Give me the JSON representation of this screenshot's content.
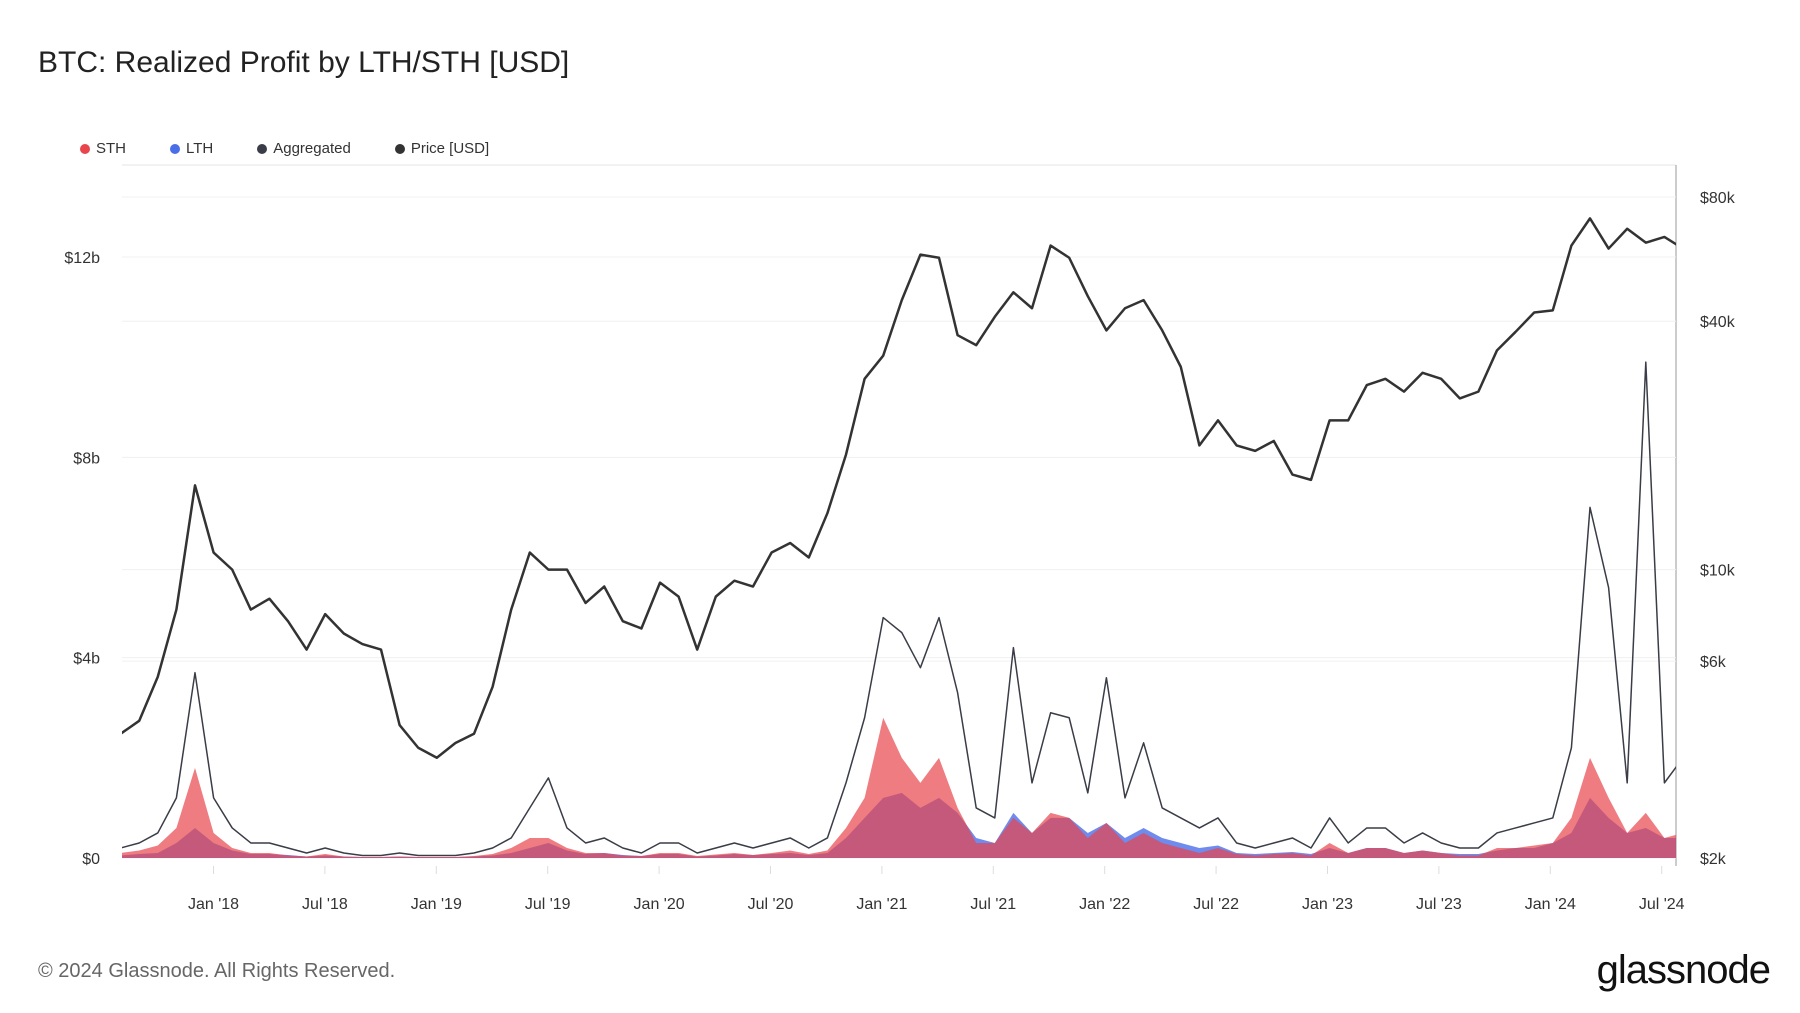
{
  "title": "BTC: Realized Profit by LTH/STH [USD]",
  "footer": "© 2024 Glassnode. All Rights Reserved.",
  "logo": "glassnode",
  "legend": [
    {
      "label": "STH",
      "color": "#e8454c"
    },
    {
      "label": "LTH",
      "color": "#4a6ee8"
    },
    {
      "label": "Aggregated",
      "color": "#3a3d47"
    },
    {
      "label": "Price [USD]",
      "color": "#333333"
    }
  ],
  "chart_data": {
    "type": "area",
    "title": "BTC: Realized Profit by LTH/STH [USD]",
    "x_ticks": [
      "Jan '18",
      "Jul '18",
      "Jan '19",
      "Jul '19",
      "Jan '20",
      "Jul '20",
      "Jan '21",
      "Jul '21",
      "Jan '22",
      "Jul '22",
      "Jan '23",
      "Jul '23",
      "Jan '24",
      "Jul '24"
    ],
    "y_left": {
      "ticks": [
        "$0",
        "$4b",
        "$8b",
        "$12b"
      ],
      "tick_values": [
        0,
        4,
        8,
        12
      ],
      "unit": "billion USD",
      "range": [
        0,
        12.3
      ]
    },
    "y_right": {
      "ticks": [
        "$2k",
        "$6k",
        "$10k",
        "$40k",
        "$80k"
      ],
      "tick_values": [
        2,
        6,
        10,
        40,
        80
      ],
      "unit": "thousand USD",
      "scale": "log",
      "range": [
        2,
        80
      ]
    },
    "grid": true,
    "legend_position": "top-left",
    "x": [
      "2017-08",
      "2017-09",
      "2017-10",
      "2017-11",
      "2017-12",
      "2018-01",
      "2018-02",
      "2018-03",
      "2018-04",
      "2018-05",
      "2018-06",
      "2018-07",
      "2018-08",
      "2018-09",
      "2018-10",
      "2018-11",
      "2018-12",
      "2019-01",
      "2019-02",
      "2019-03",
      "2019-04",
      "2019-05",
      "2019-06",
      "2019-07",
      "2019-08",
      "2019-09",
      "2019-10",
      "2019-11",
      "2019-12",
      "2020-01",
      "2020-02",
      "2020-03",
      "2020-04",
      "2020-05",
      "2020-06",
      "2020-07",
      "2020-08",
      "2020-09",
      "2020-10",
      "2020-11",
      "2020-12",
      "2021-01",
      "2021-02",
      "2021-03",
      "2021-04",
      "2021-05",
      "2021-06",
      "2021-07",
      "2021-08",
      "2021-09",
      "2021-10",
      "2021-11",
      "2021-12",
      "2022-01",
      "2022-02",
      "2022-03",
      "2022-04",
      "2022-05",
      "2022-06",
      "2022-07",
      "2022-08",
      "2022-09",
      "2022-10",
      "2022-11",
      "2022-12",
      "2023-01",
      "2023-02",
      "2023-03",
      "2023-04",
      "2023-05",
      "2023-06",
      "2023-07",
      "2023-08",
      "2023-09",
      "2023-10",
      "2023-11",
      "2023-12",
      "2024-01",
      "2024-02",
      "2024-03",
      "2024-04",
      "2024-05",
      "2024-06",
      "2024-07",
      "2024-08"
    ],
    "series": [
      {
        "name": "Aggregated",
        "axis": "left",
        "color": "#3a3d47",
        "values": [
          0.2,
          0.3,
          0.5,
          1.2,
          3.7,
          1.2,
          0.6,
          0.3,
          0.3,
          0.2,
          0.1,
          0.2,
          0.1,
          0.05,
          0.05,
          0.1,
          0.05,
          0.05,
          0.05,
          0.1,
          0.2,
          0.4,
          1.0,
          1.6,
          0.6,
          0.3,
          0.4,
          0.2,
          0.1,
          0.3,
          0.3,
          0.1,
          0.2,
          0.3,
          0.2,
          0.3,
          0.4,
          0.2,
          0.4,
          1.5,
          2.8,
          4.8,
          4.5,
          3.8,
          4.8,
          3.3,
          1.0,
          0.8,
          4.2,
          1.5,
          2.9,
          2.8,
          1.3,
          3.6,
          1.2,
          2.3,
          1.0,
          0.8,
          0.6,
          0.8,
          0.3,
          0.2,
          0.3,
          0.4,
          0.2,
          0.8,
          0.3,
          0.6,
          0.6,
          0.3,
          0.5,
          0.3,
          0.2,
          0.2,
          0.5,
          0.6,
          0.7,
          0.8,
          2.2,
          7.0,
          5.4,
          1.5,
          9.9,
          1.5,
          2.0
        ]
      },
      {
        "name": "STH",
        "axis": "left",
        "color": "#e8454c",
        "values": [
          0.1,
          0.15,
          0.25,
          0.6,
          1.8,
          0.5,
          0.2,
          0.1,
          0.1,
          0.05,
          0.03,
          0.08,
          0.03,
          0.02,
          0.02,
          0.03,
          0.02,
          0.02,
          0.02,
          0.04,
          0.08,
          0.2,
          0.4,
          0.4,
          0.2,
          0.1,
          0.1,
          0.05,
          0.04,
          0.1,
          0.1,
          0.04,
          0.07,
          0.1,
          0.06,
          0.1,
          0.15,
          0.08,
          0.15,
          0.6,
          1.2,
          2.8,
          2.0,
          1.5,
          2.0,
          1.0,
          0.3,
          0.3,
          0.8,
          0.5,
          0.9,
          0.8,
          0.4,
          0.7,
          0.3,
          0.5,
          0.3,
          0.2,
          0.1,
          0.2,
          0.08,
          0.05,
          0.08,
          0.1,
          0.05,
          0.3,
          0.1,
          0.2,
          0.2,
          0.1,
          0.15,
          0.1,
          0.05,
          0.05,
          0.2,
          0.2,
          0.25,
          0.3,
          0.8,
          2.0,
          1.2,
          0.5,
          0.9,
          0.4,
          0.5
        ]
      },
      {
        "name": "LTH",
        "axis": "left",
        "color": "#4a6ee8",
        "values": [
          0.05,
          0.08,
          0.1,
          0.3,
          0.6,
          0.3,
          0.15,
          0.08,
          0.08,
          0.06,
          0.03,
          0.05,
          0.03,
          0.02,
          0.02,
          0.03,
          0.02,
          0.02,
          0.02,
          0.03,
          0.05,
          0.1,
          0.2,
          0.3,
          0.15,
          0.08,
          0.1,
          0.06,
          0.04,
          0.08,
          0.08,
          0.03,
          0.05,
          0.08,
          0.06,
          0.08,
          0.1,
          0.06,
          0.1,
          0.4,
          0.8,
          1.2,
          1.3,
          1.0,
          1.2,
          0.9,
          0.4,
          0.3,
          0.9,
          0.5,
          0.8,
          0.8,
          0.5,
          0.7,
          0.4,
          0.6,
          0.4,
          0.3,
          0.2,
          0.25,
          0.1,
          0.08,
          0.1,
          0.12,
          0.08,
          0.2,
          0.1,
          0.2,
          0.2,
          0.1,
          0.15,
          0.1,
          0.08,
          0.08,
          0.15,
          0.2,
          0.2,
          0.3,
          0.5,
          1.2,
          0.8,
          0.5,
          0.6,
          0.4,
          0.4
        ]
      },
      {
        "name": "Price [USD]",
        "axis": "right",
        "color": "#333333",
        "values": [
          4.0,
          4.3,
          5.5,
          8.0,
          16,
          11,
          10,
          8,
          8.5,
          7.5,
          6.4,
          7.8,
          7.0,
          6.6,
          6.4,
          4.2,
          3.7,
          3.5,
          3.8,
          4.0,
          5.2,
          8.0,
          11,
          10,
          10,
          8.3,
          9.1,
          7.5,
          7.2,
          9.3,
          8.6,
          6.4,
          8.6,
          9.4,
          9.1,
          11,
          11.6,
          10.7,
          13.7,
          19,
          29,
          33,
          45,
          58,
          57,
          37,
          35,
          41,
          47,
          43,
          61,
          57,
          46,
          38,
          43,
          45,
          38,
          31,
          20,
          23,
          20,
          19.4,
          20.5,
          17,
          16.5,
          23,
          23,
          28,
          29,
          27,
          30,
          29,
          26,
          27,
          34,
          37.7,
          42,
          42.5,
          61,
          71,
          60,
          67,
          62,
          64,
          60
        ]
      }
    ]
  }
}
